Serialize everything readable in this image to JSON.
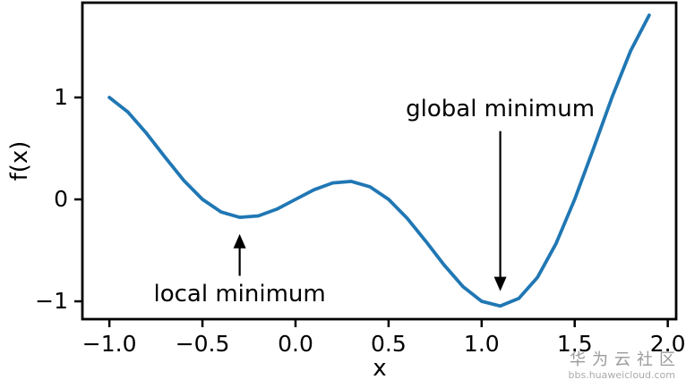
{
  "chart_data": {
    "type": "line",
    "title": "",
    "xlabel": "x",
    "ylabel": "f(x)",
    "x": [
      -1.0,
      -0.9,
      -0.8,
      -0.7,
      -0.6,
      -0.5,
      -0.4,
      -0.3,
      -0.2,
      -0.1,
      0.0,
      0.1,
      0.2,
      0.3,
      0.4,
      0.5,
      0.6,
      0.7,
      0.8,
      0.9,
      1.0,
      1.1,
      1.2,
      1.3,
      1.4,
      1.5,
      1.6,
      1.7,
      1.8,
      1.9
    ],
    "y": [
      1.0,
      0.856,
      0.6472,
      0.4114,
      0.1854,
      0.0,
      -0.1236,
      -0.1763,
      -0.1618,
      -0.0951,
      0.0,
      0.0951,
      0.1618,
      0.1763,
      0.1236,
      0.0,
      -0.1854,
      -0.4114,
      -0.6472,
      -0.856,
      -1.0,
      -1.0461,
      -0.9708,
      -0.7641,
      -0.4326,
      0.0,
      0.4944,
      0.9993,
      1.4562,
      1.807
    ],
    "line_color": "#2077b4",
    "axis_color": "#000000",
    "xlim": [
      -1.145,
      2.045
    ],
    "ylim": [
      -1.175,
      1.93
    ],
    "grid": false,
    "legend": null,
    "xticks": {
      "values": [
        -1.0,
        -0.5,
        0.0,
        0.5,
        1.0,
        1.5,
        2.0
      ],
      "labels": [
        "−1.0",
        "−0.5",
        "0.0",
        "0.5",
        "1.0",
        "1.5",
        "2.0"
      ]
    },
    "yticks": {
      "values": [
        -1,
        0,
        1
      ],
      "labels": [
        "−1",
        "0",
        "1"
      ]
    },
    "annotations": [
      {
        "text": "local minimum",
        "point": [
          -0.3,
          -0.34
        ],
        "tail": [
          -0.3,
          -0.75
        ],
        "label_xy": [
          -0.3,
          -0.93
        ],
        "direction": "up"
      },
      {
        "text": "global minimum",
        "point": [
          1.1,
          -0.9
        ],
        "tail": [
          1.1,
          0.67
        ],
        "label_xy": [
          1.1,
          0.89
        ],
        "direction": "down"
      }
    ]
  },
  "watermark": {
    "line1": "华为云社区",
    "line2": "bbs.huaweicloud.com"
  }
}
